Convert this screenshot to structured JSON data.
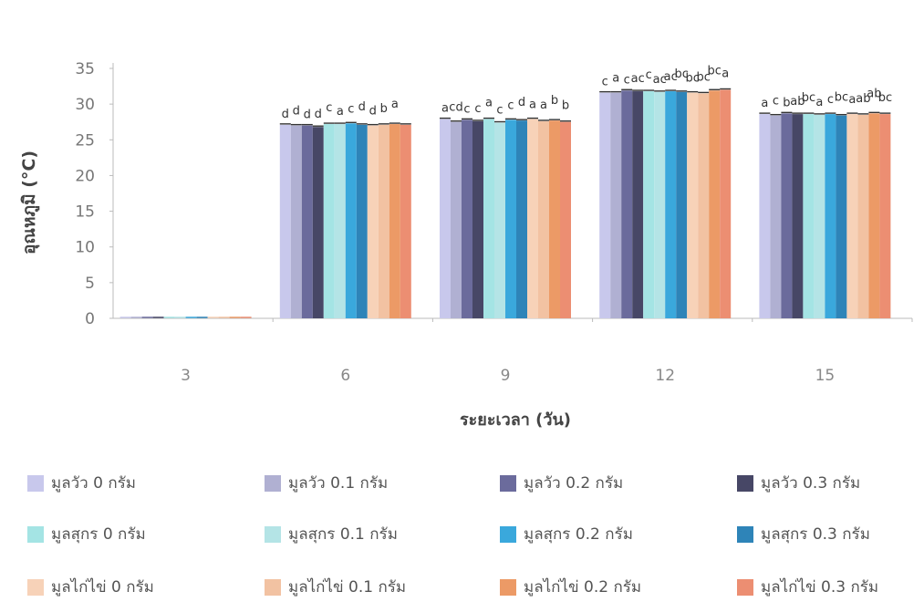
{
  "chart_data": {
    "type": "bar",
    "ylabel": "อุณหภูมิ (°C)",
    "xlabel": "ระยะเวลา (วัน)",
    "ylim": [
      0,
      35
    ],
    "yticks": [
      0,
      5,
      10,
      15,
      20,
      25,
      30,
      35
    ],
    "categories": [
      "3",
      "6",
      "9",
      "12",
      "15"
    ],
    "grid": false,
    "legend_position": "bottom",
    "series": [
      {
        "name": "มูลวัว 0 กรัม",
        "color": "#c8c8ec",
        "values": [
          0,
          27.1,
          27.9,
          31.6,
          28.6
        ],
        "labels": [
          "",
          "d",
          "a",
          "c",
          "a"
        ]
      },
      {
        "name": "มูลวัว 0.1 กรัม",
        "color": "#b0b0d2",
        "values": [
          0,
          27.0,
          27.5,
          31.6,
          28.4
        ],
        "labels": [
          "",
          "d",
          "cd",
          "a",
          "c"
        ]
      },
      {
        "name": "มูลวัว 0.2 กรัม",
        "color": "#6b6b9c",
        "values": [
          0,
          27.0,
          27.8,
          31.9,
          28.7
        ],
        "labels": [
          "",
          "d",
          "c",
          "c",
          "b"
        ]
      },
      {
        "name": "มูลวัว 0.3 กรัม",
        "color": "#474766",
        "values": [
          0,
          26.8,
          27.6,
          31.8,
          28.6
        ],
        "labels": [
          "",
          "d",
          "c",
          "ac",
          "ab"
        ]
      },
      {
        "name": "มูลสุกร 0 กรัม",
        "color": "#a4e4e4",
        "values": [
          0,
          27.2,
          27.9,
          31.8,
          28.6
        ],
        "labels": [
          "",
          "c",
          "a",
          "c",
          "bc"
        ]
      },
      {
        "name": "มูลสุกร 0.1 กรัม",
        "color": "#b4e4e6",
        "values": [
          0,
          27.2,
          27.4,
          31.7,
          28.5
        ],
        "labels": [
          "",
          "a",
          "c",
          "ac",
          "a"
        ]
      },
      {
        "name": "มูลสุกร 0.2 กรัม",
        "color": "#3aa8dc",
        "values": [
          0,
          27.3,
          27.8,
          31.8,
          28.6
        ],
        "labels": [
          "",
          "c",
          "c",
          "ac",
          "c"
        ]
      },
      {
        "name": "มูลสุกร 0.3 กรัม",
        "color": "#2e84b8",
        "values": [
          0,
          27.1,
          27.7,
          31.7,
          28.4
        ],
        "labels": [
          "",
          "d",
          "d",
          "bc",
          "bc"
        ]
      },
      {
        "name": "มูลไก่ไข่ 0 กรัม",
        "color": "#f7d2b8",
        "values": [
          0,
          27.0,
          27.9,
          31.6,
          28.6
        ],
        "labels": [
          "",
          "d",
          "a",
          "bc",
          "a"
        ]
      },
      {
        "name": "มูลไก่ไข่ 0.1 กรัม",
        "color": "#f2c2a2",
        "values": [
          0,
          27.1,
          27.6,
          31.5,
          28.5
        ],
        "labels": [
          "",
          "b",
          "a",
          "bc",
          "ab"
        ]
      },
      {
        "name": "มูลไก่ไข่ 0.2 กรัม",
        "color": "#ec9a66",
        "values": [
          0,
          27.2,
          27.7,
          31.9,
          28.7
        ],
        "labels": [
          "",
          "a",
          "b",
          "bc",
          "ab"
        ]
      },
      {
        "name": "มูลไก่ไข่ 0.3 กรัม",
        "color": "#ec8e72",
        "values": [
          0,
          27.1,
          27.5,
          32.0,
          28.6
        ],
        "labels": [
          "",
          "",
          "b",
          "a",
          "bc"
        ]
      }
    ]
  }
}
